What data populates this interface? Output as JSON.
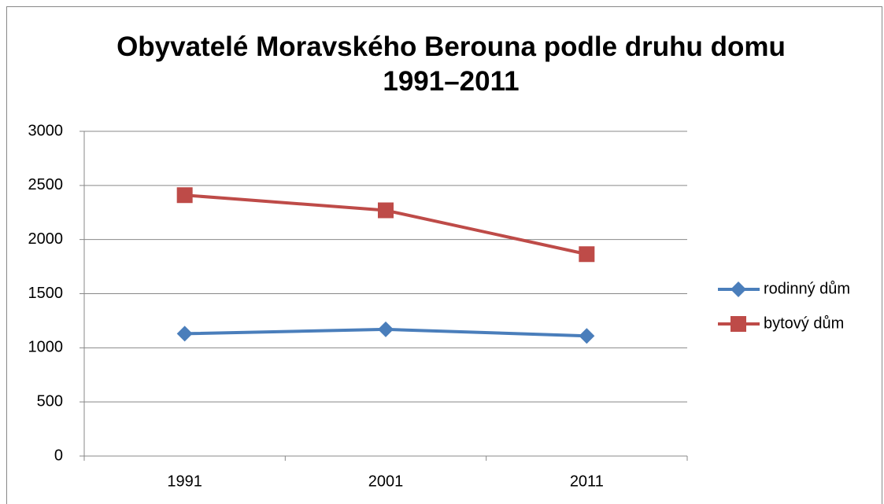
{
  "chart_data": {
    "type": "line",
    "title": "Obyvatelé Moravského Berouna podle druhu domu 1991–2011",
    "categories": [
      "1991",
      "2001",
      "2011"
    ],
    "series": [
      {
        "name": "rodinný dům",
        "color": "#4a7ebb",
        "marker": "diamond",
        "values": [
          1130,
          1170,
          1110
        ]
      },
      {
        "name": "bytový dům",
        "color": "#be4b48",
        "marker": "square",
        "values": [
          2410,
          2270,
          1865
        ]
      }
    ],
    "ylim": [
      0,
      3000
    ],
    "yticks": [
      0,
      500,
      1000,
      1500,
      2000,
      2500,
      3000
    ],
    "grid": true,
    "legend": "right"
  }
}
